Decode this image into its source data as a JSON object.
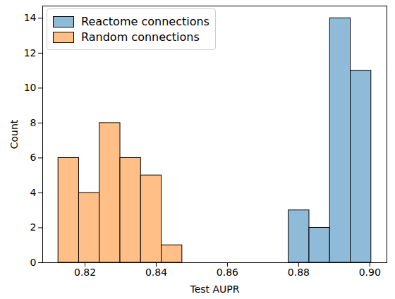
{
  "chart_data": {
    "type": "histogram",
    "x_label": "Test AUPR",
    "y_label": "Count",
    "series": [
      {
        "name": "Reactome connections",
        "color": "#8fbbd9",
        "bins": [
          0.8772,
          0.883,
          0.8888,
          0.8946,
          0.9004
        ],
        "counts": [
          3,
          2,
          14,
          11
        ]
      },
      {
        "name": "Random connections",
        "color": "#ffbf86",
        "bins": [
          0.8125,
          0.8183,
          0.8241,
          0.8299,
          0.8357,
          0.8415,
          0.8473
        ],
        "counts": [
          6,
          4,
          8,
          6,
          5,
          1
        ]
      }
    ],
    "xlim": [
      0.8081,
      0.9048
    ],
    "xticks": [
      0.82,
      0.84,
      0.86,
      0.88,
      {
        "value": 0.9,
        "label": "0.90"
      }
    ],
    "ylim": [
      0,
      14.7
    ],
    "yticks": [
      0,
      2,
      4,
      6,
      8,
      10,
      12,
      14
    ],
    "legend": "upper left",
    "grid": false
  }
}
